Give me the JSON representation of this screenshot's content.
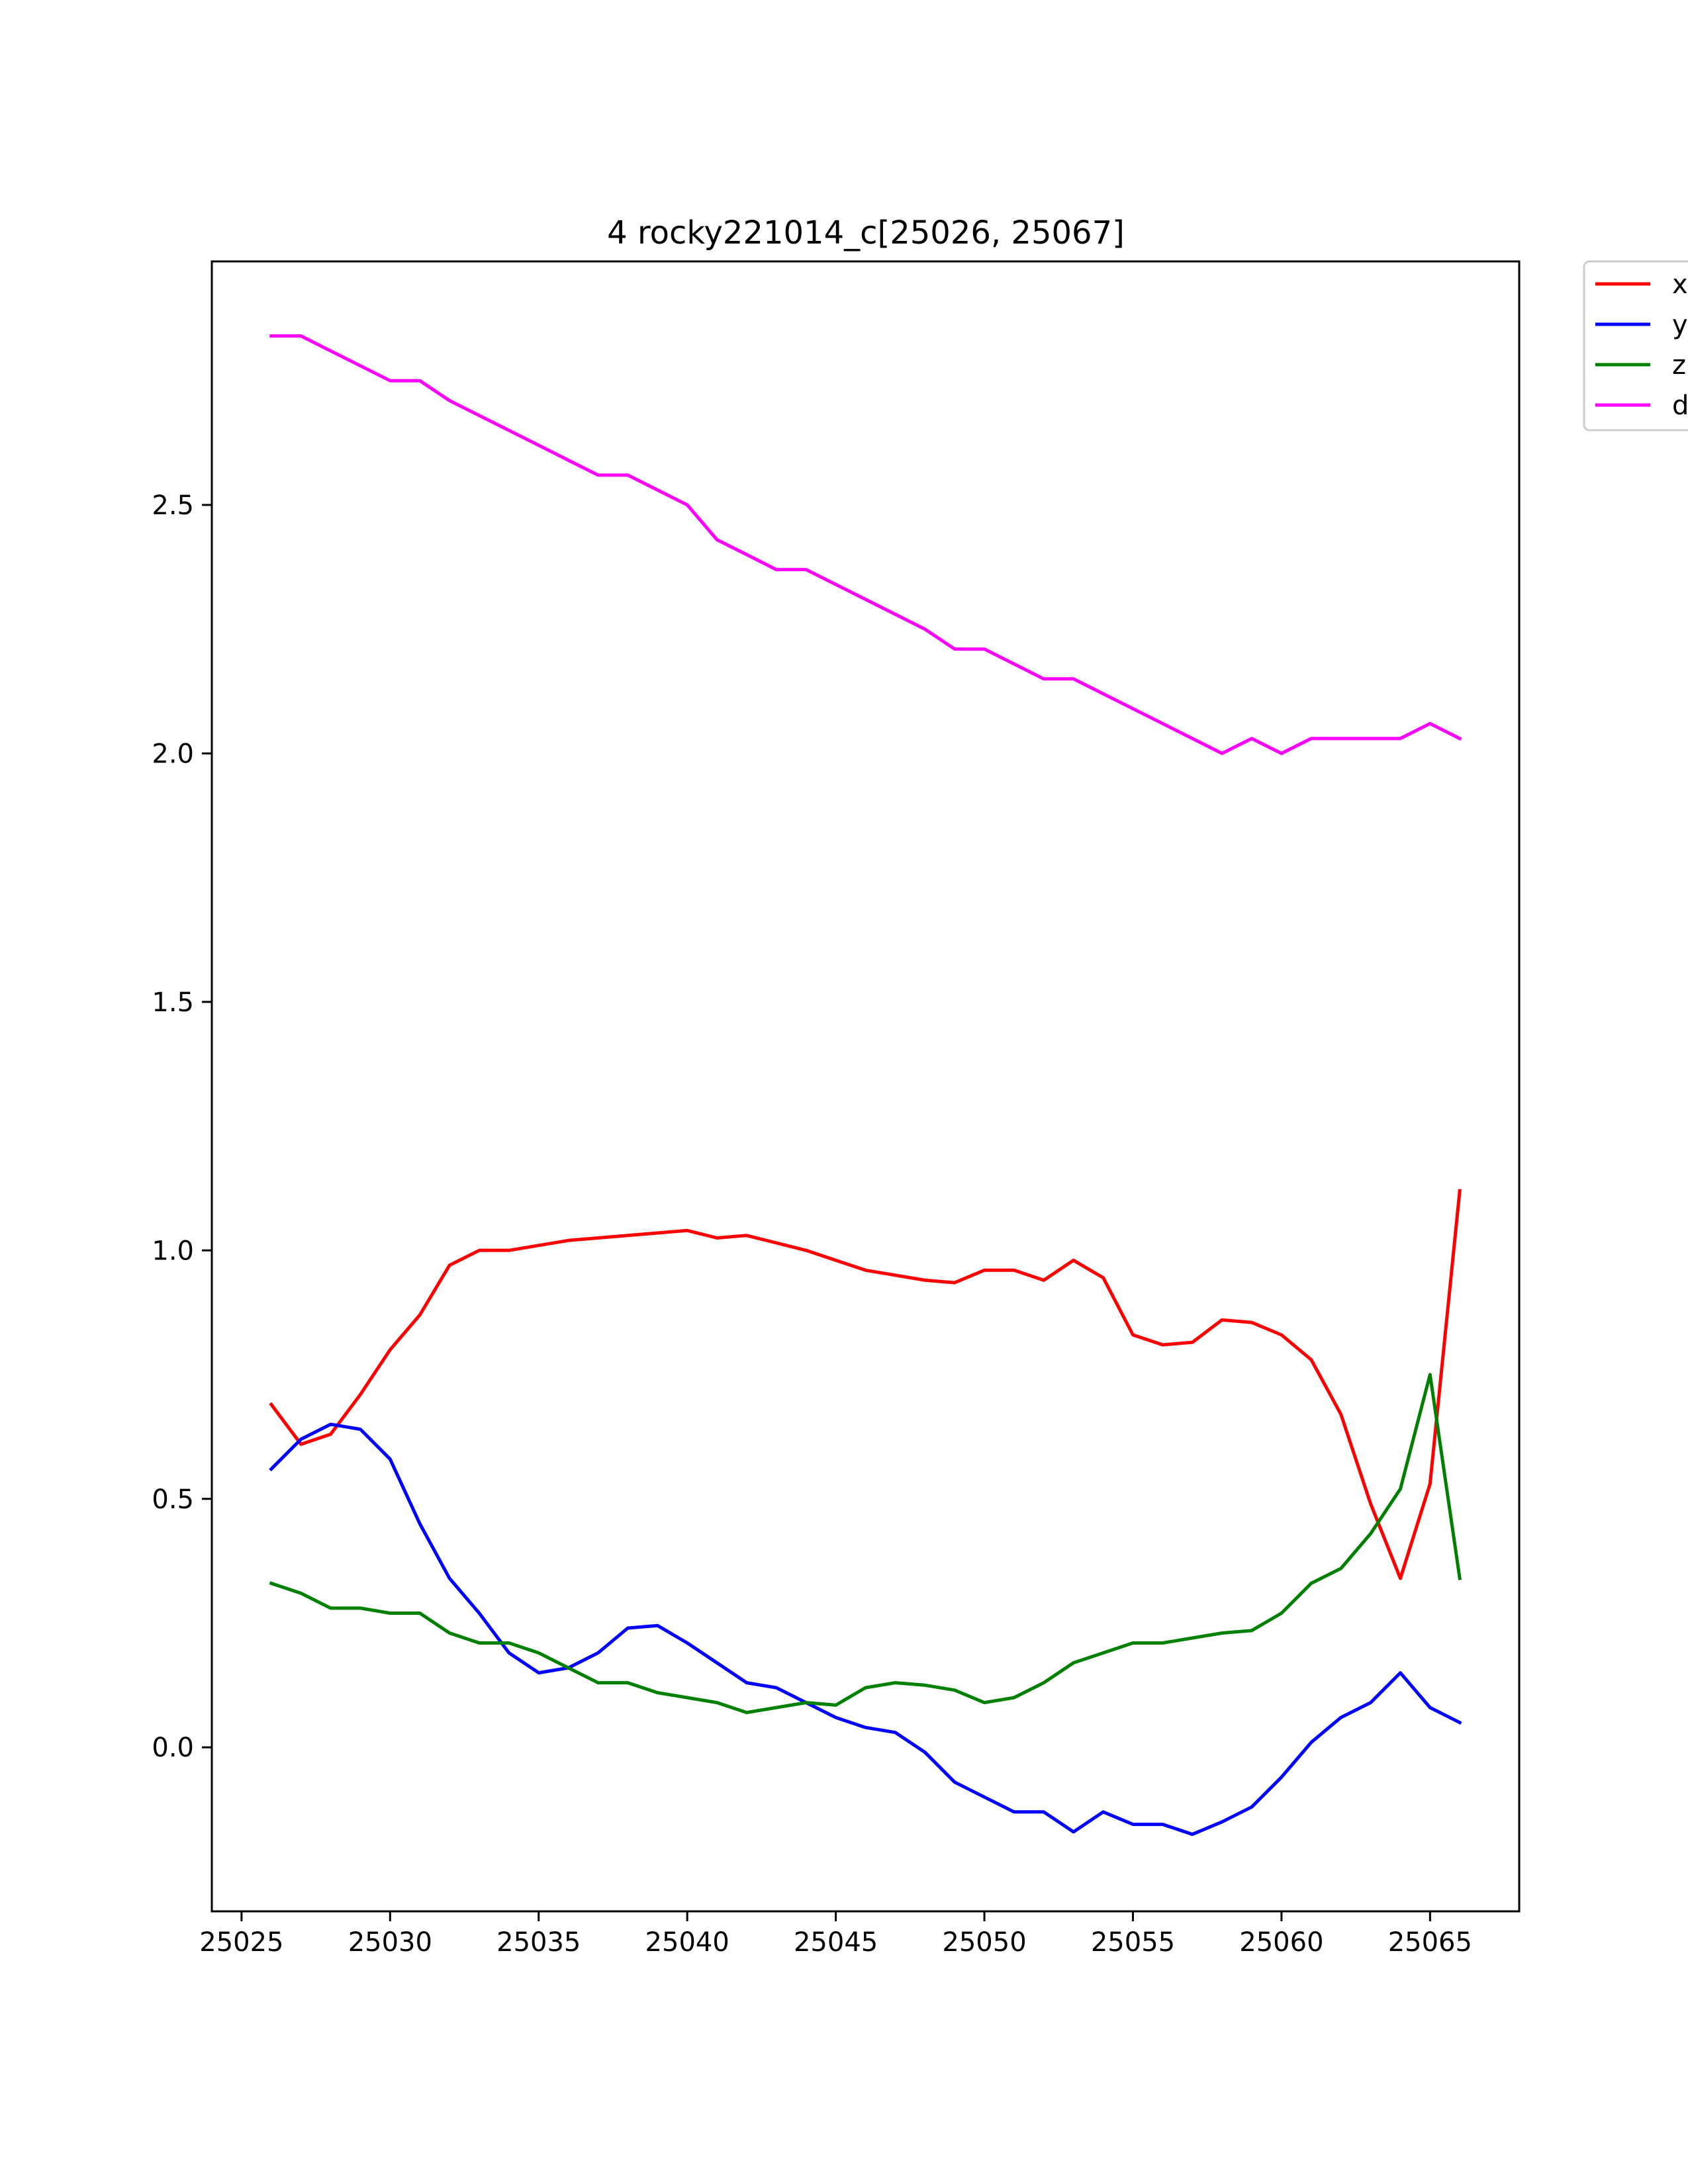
{
  "chart_data": {
    "type": "line",
    "title": "4 rocky221014_c[25026, 25067]",
    "xlabel": "",
    "ylabel": "",
    "xlim": [
      25024,
      25068
    ],
    "ylim": [
      -0.33,
      2.99
    ],
    "xticks": [
      25025,
      25030,
      25035,
      25040,
      25045,
      25050,
      25055,
      25060,
      25065
    ],
    "yticks": [
      0.0,
      0.5,
      1.0,
      1.5,
      2.0,
      2.5
    ],
    "xtick_labels": [
      "25025",
      "25030",
      "25035",
      "25040",
      "25045",
      "25050",
      "25055",
      "25060",
      "25065"
    ],
    "ytick_labels": [
      "0.0",
      "0.5",
      "1.0",
      "1.5",
      "2.0",
      "2.5"
    ],
    "grid": false,
    "legend_position": "outside-top-right",
    "x": [
      25026,
      25027,
      25028,
      25029,
      25030,
      25031,
      25032,
      25033,
      25034,
      25035,
      25036,
      25037,
      25038,
      25039,
      25040,
      25041,
      25042,
      25043,
      25044,
      25045,
      25046,
      25047,
      25048,
      25049,
      25050,
      25051,
      25052,
      25053,
      25054,
      25055,
      25056,
      25057,
      25058,
      25059,
      25060,
      25061,
      25062,
      25063,
      25064,
      25065,
      25066
    ],
    "series": [
      {
        "name": "x",
        "color": "#ff0000",
        "values": [
          0.69,
          0.61,
          0.63,
          0.71,
          0.8,
          0.87,
          0.97,
          1.0,
          1.0,
          1.01,
          1.02,
          1.025,
          1.03,
          1.035,
          1.04,
          1.025,
          1.03,
          1.015,
          1.0,
          0.98,
          0.96,
          0.95,
          0.94,
          0.935,
          0.96,
          0.96,
          0.94,
          0.98,
          0.945,
          0.83,
          0.81,
          0.815,
          0.86,
          0.855,
          0.83,
          0.78,
          0.67,
          0.49,
          0.34,
          0.53,
          1.12
        ]
      },
      {
        "name": "y",
        "color": "#0000ff",
        "values": [
          0.56,
          0.62,
          0.65,
          0.64,
          0.58,
          0.45,
          0.34,
          0.27,
          0.19,
          0.15,
          0.16,
          0.19,
          0.24,
          0.245,
          0.21,
          0.17,
          0.13,
          0.12,
          0.09,
          0.06,
          0.04,
          0.03,
          -0.01,
          -0.07,
          -0.1,
          -0.13,
          -0.13,
          -0.17,
          -0.13,
          -0.155,
          -0.155,
          -0.175,
          -0.15,
          -0.12,
          -0.06,
          0.01,
          0.06,
          0.09,
          0.15,
          0.08,
          0.05
        ]
      },
      {
        "name": "z",
        "color": "#008000",
        "values": [
          0.33,
          0.31,
          0.28,
          0.28,
          0.27,
          0.27,
          0.23,
          0.21,
          0.21,
          0.19,
          0.16,
          0.13,
          0.13,
          0.11,
          0.1,
          0.09,
          0.07,
          0.08,
          0.09,
          0.085,
          0.12,
          0.13,
          0.125,
          0.115,
          0.09,
          0.1,
          0.13,
          0.17,
          0.19,
          0.21,
          0.21,
          0.22,
          0.23,
          0.235,
          0.27,
          0.33,
          0.36,
          0.43,
          0.52,
          0.75,
          0.34
        ]
      },
      {
        "name": "d",
        "color": "#ff00ff",
        "values": [
          2.84,
          2.84,
          2.81,
          2.78,
          2.75,
          2.75,
          2.71,
          2.68,
          2.65,
          2.62,
          2.59,
          2.56,
          2.56,
          2.53,
          2.5,
          2.43,
          2.4,
          2.37,
          2.37,
          2.34,
          2.31,
          2.28,
          2.25,
          2.21,
          2.21,
          2.18,
          2.15,
          2.15,
          2.12,
          2.09,
          2.06,
          2.03,
          2.0,
          2.03,
          2.0,
          2.03,
          2.03,
          2.03,
          2.03,
          2.06,
          2.03
        ]
      }
    ]
  }
}
